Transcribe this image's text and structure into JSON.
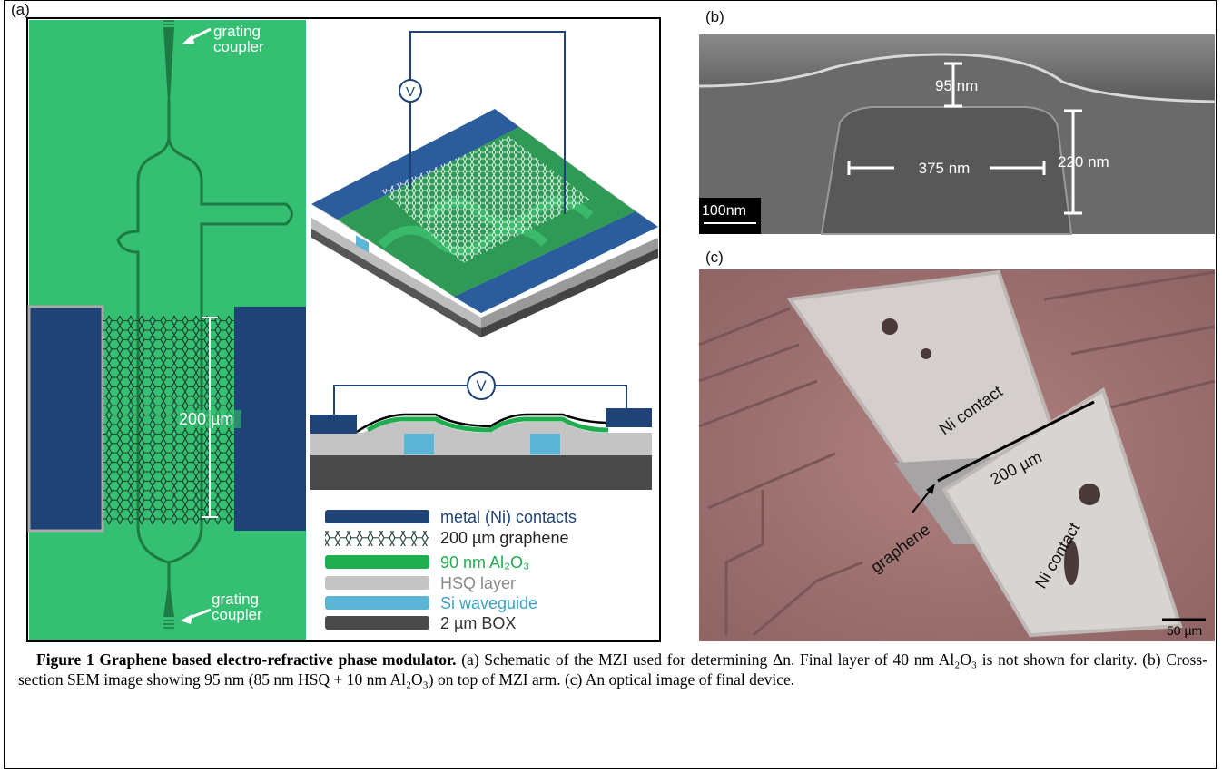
{
  "panel_a": {
    "label": "(a)",
    "top_coupler": [
      "grating",
      "coupler"
    ],
    "bottom_coupler": [
      "grating",
      "coupler"
    ],
    "length": "200 µm",
    "voltage_3d": "V",
    "voltage_cross": "V",
    "legend": [
      "metal (Ni) contacts",
      "200 µm graphene",
      "90 nm Al₂O₃",
      "HSQ layer",
      "Si waveguide",
      "2 µm BOX"
    ]
  },
  "panel_b": {
    "label": "(b)",
    "thickness": "95 nm",
    "width": "375 nm",
    "height": "220 nm",
    "scale_bar": "100nm"
  },
  "panel_c": {
    "label": "(c)",
    "contact_top": "Ni contact",
    "length": "200 µm",
    "contact_bottom": "Ni contact",
    "graphene": "graphene",
    "scale_bar": "50 µm"
  },
  "caption": {
    "title": "Figure 1 Graphene based electro-refractive phase modulator.",
    "text": "(a) Schematic of the MZI used for determining Δn. Final layer of 40 nm Al₂O₃ is not shown for clarity. (b) Cross-section SEM image showing 95 nm (85 nm HSQ + 10 nm Al₂O₃) on top of MZI arm. (c) An optical image of final device."
  }
}
